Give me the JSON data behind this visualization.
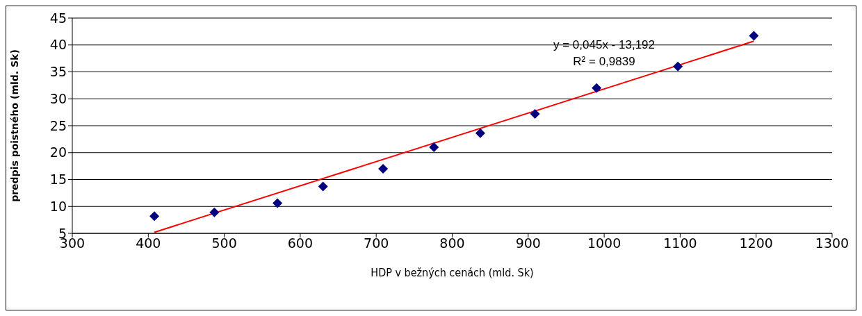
{
  "chart_data": {
    "type": "scatter",
    "xlabel": "HDP v bežných cenách (mld. Sk)",
    "ylabel": "predpis poistného (mld. Sk)",
    "xlim": [
      300,
      1300
    ],
    "xticks": [
      300,
      400,
      500,
      600,
      700,
      800,
      900,
      1000,
      1100,
      1200,
      1300
    ],
    "ylim": [
      5,
      45
    ],
    "yticks": [
      5,
      10,
      15,
      20,
      25,
      30,
      35,
      40,
      45
    ],
    "grid": "y",
    "marker": "diamond",
    "series": [
      {
        "color": "#000080",
        "x": [
          408,
          487,
          570,
          630,
          709,
          776,
          837,
          909,
          990,
          1097,
          1197
        ],
        "values": [
          8.2,
          8.9,
          10.6,
          13.7,
          17.0,
          21.0,
          23.6,
          27.2,
          32.0,
          36.0,
          41.7
        ]
      },
      {
        "type": "line",
        "color": "#ff0000",
        "marker": "none",
        "x": [
          408,
          1197
        ],
        "values": [
          5.2,
          40.7
        ]
      }
    ],
    "annotations": [
      "y = 0,045x - 13,192",
      "R² = 0,9839"
    ]
  }
}
